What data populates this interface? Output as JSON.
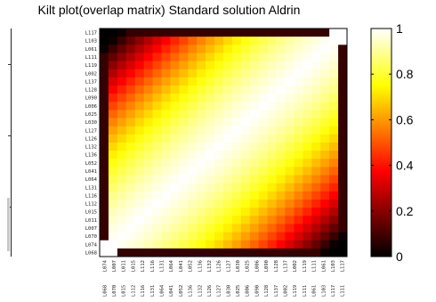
{
  "chart_data": {
    "type": "heatmap",
    "title": "Kilt plot(overlap matrix) Standard solution  Aldrin",
    "xlabel": "",
    "ylabel": "",
    "colormap": "hot",
    "value_range": [
      0,
      1
    ],
    "colorbar_ticks": [
      "0",
      "0.2",
      "0.4",
      "0.6",
      "0.8",
      "1"
    ],
    "row_labels_top_to_bottom": [
      "L117",
      "L103",
      "L061",
      "L111",
      "L119",
      "L002",
      "L137",
      "L128",
      "L090",
      "L006",
      "L025",
      "L030",
      "L127",
      "L126",
      "L132",
      "L136",
      "L052",
      "L041",
      "L064",
      "L131",
      "L116",
      "L112",
      "L015",
      "L011",
      "L007",
      "L070",
      "L074",
      "L068"
    ],
    "col_labels_left_to_right": [
      "L074",
      "L007",
      "L011",
      "L015",
      "L112",
      "L116",
      "L131",
      "L064",
      "L041",
      "L052",
      "L136",
      "L132",
      "L126",
      "L127",
      "L030",
      "L025",
      "L006",
      "L090",
      "L128",
      "L137",
      "L002",
      "L119",
      "L111",
      "L061",
      "L103",
      "L117"
    ],
    "col_labels_bottom_row": [
      "L068",
      "L070",
      "L015",
      "L112",
      "L116",
      "L131",
      "L064",
      "L041",
      "L052",
      "L136",
      "L132",
      "L126",
      "L127",
      "L030",
      "L025",
      "L006",
      "L090",
      "L128",
      "L137",
      "L002",
      "L119",
      "L111",
      "L061",
      "L103",
      "L117",
      "L111"
    ],
    "matrix_description_values": {
      "diagonal": 1.0,
      "near_diagonal": 0.95,
      "far_corner": 0.05
    }
  }
}
